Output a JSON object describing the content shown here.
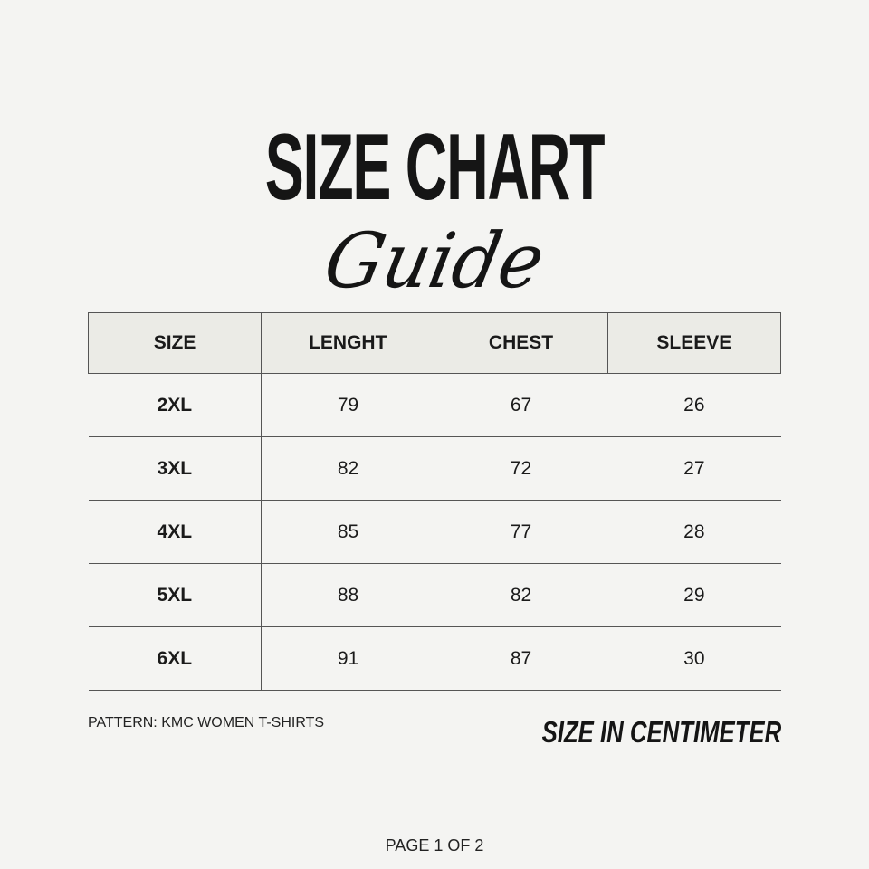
{
  "title": "SIZE CHART",
  "subtitle": "Guide",
  "table": {
    "headers": [
      "SIZE",
      "LENGHT",
      "CHEST",
      "SLEEVE"
    ],
    "rows": [
      [
        "2XL",
        "79",
        "67",
        "26"
      ],
      [
        "3XL",
        "82",
        "72",
        "27"
      ],
      [
        "4XL",
        "85",
        "77",
        "28"
      ],
      [
        "5XL",
        "88",
        "82",
        "29"
      ],
      [
        "6XL",
        "91",
        "87",
        "30"
      ]
    ]
  },
  "pattern": "PATTERN: KMC WOMEN T-SHIRTS",
  "unit_note": "SIZE IN CENTIMETER",
  "page_indicator": "PAGE 1 OF 2",
  "colors": {
    "background": "#f4f4f2",
    "header_fill": "#ebebe6",
    "text": "#151515"
  }
}
